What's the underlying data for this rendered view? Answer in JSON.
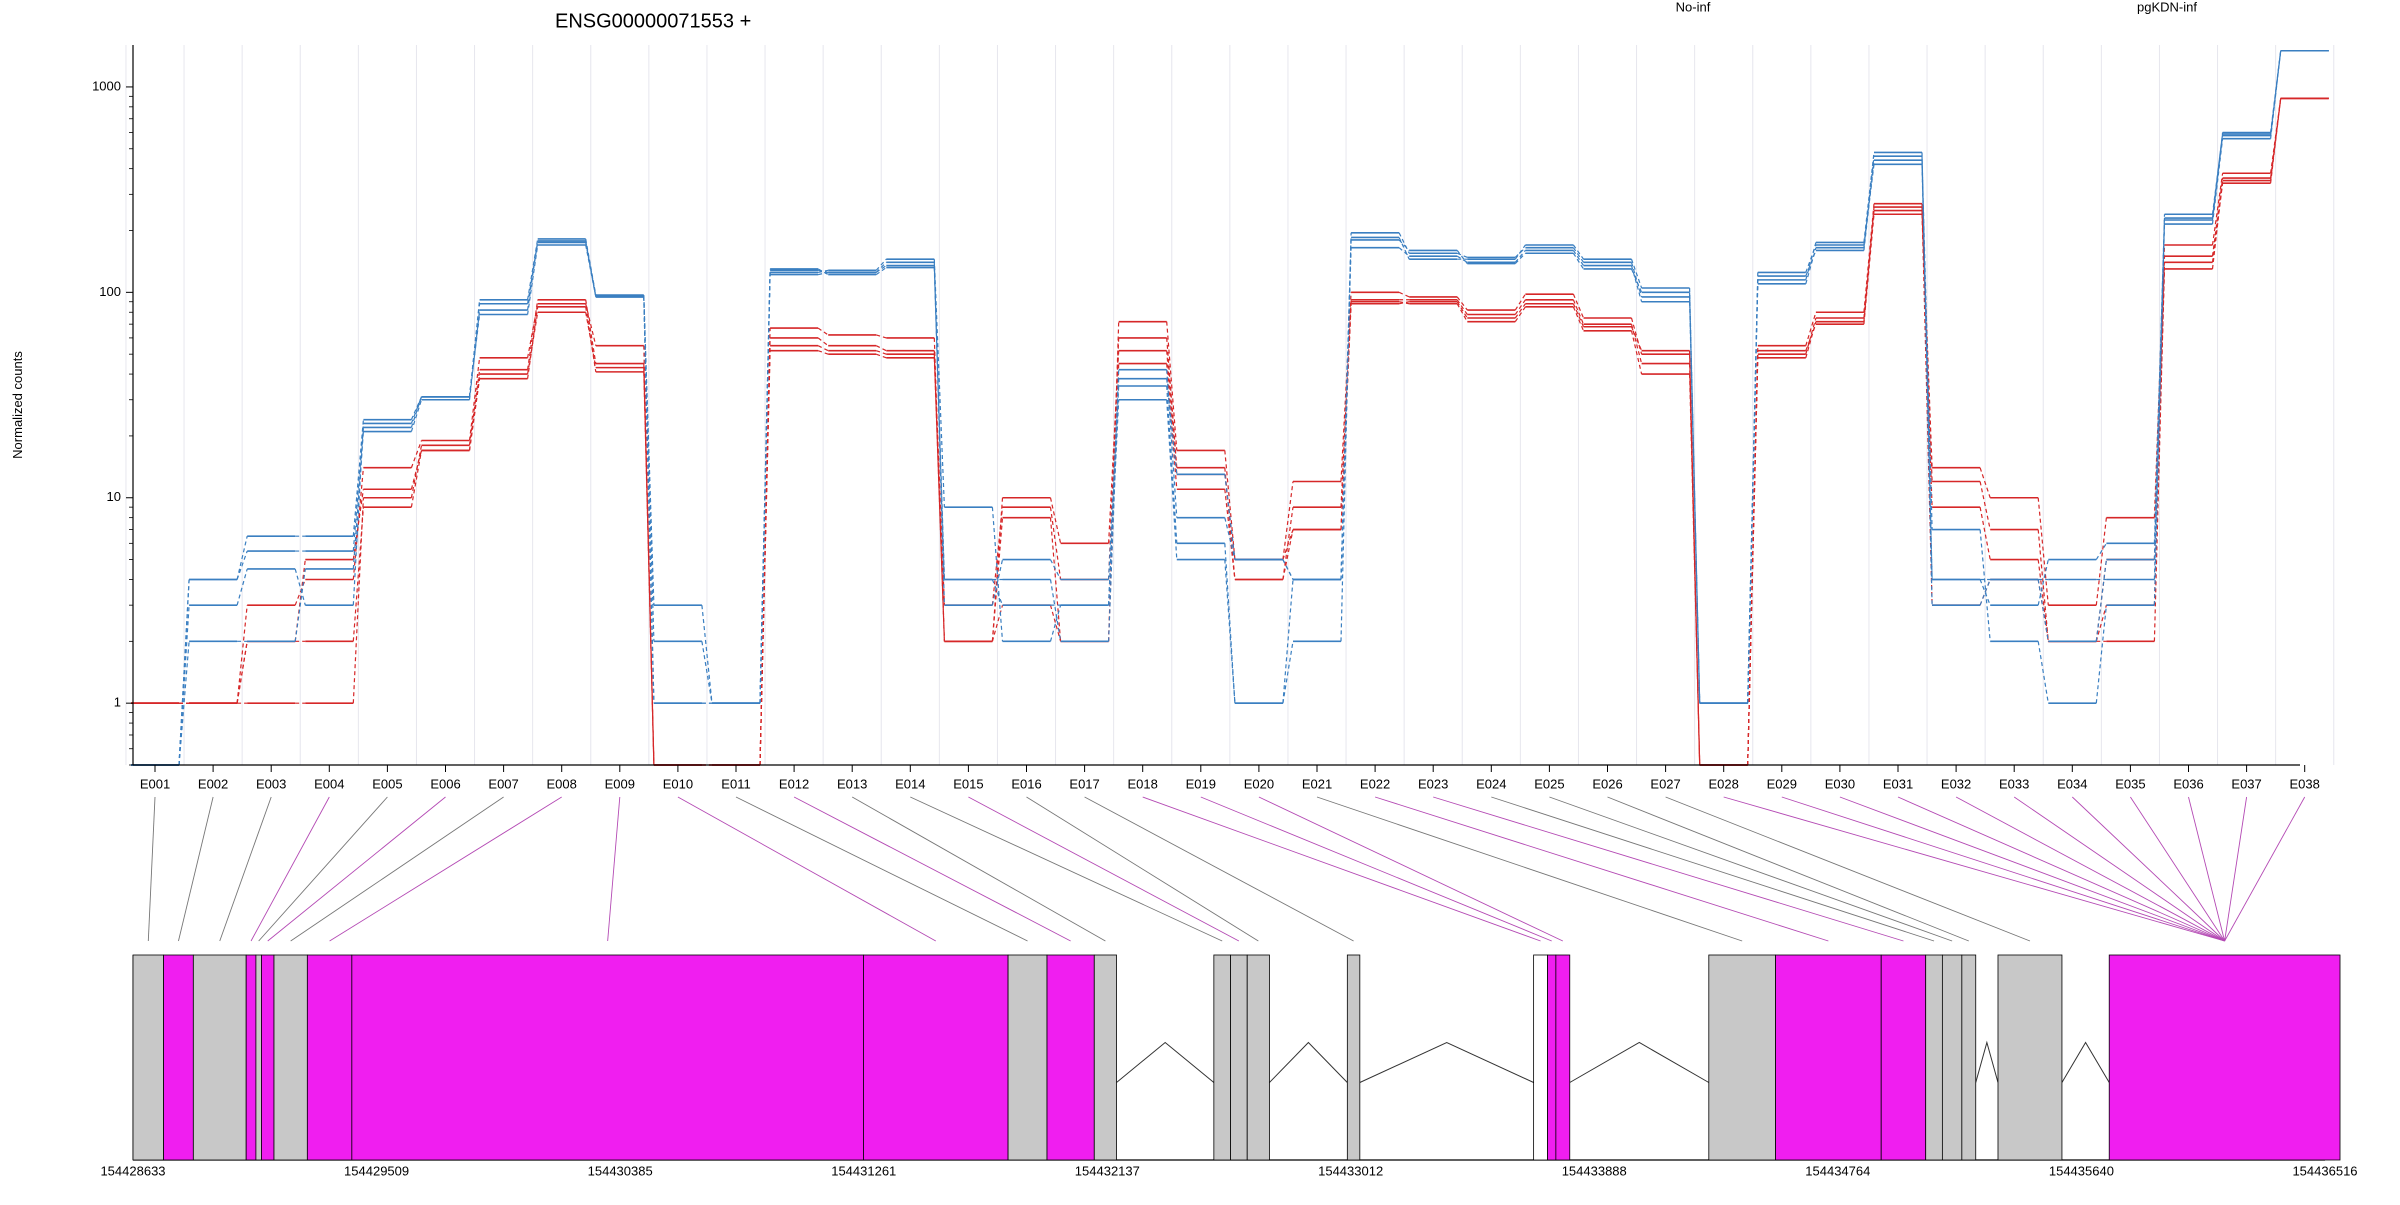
{
  "chart_data": {
    "type": "line",
    "title": "ENSG00000071553 +",
    "xlabel": "",
    "ylabel": "Normalized counts",
    "y_scale": "log",
    "ylim": [
      0.5,
      1600
    ],
    "grid": {
      "x": true,
      "y": false
    },
    "legend": {
      "placement": "top-right"
    },
    "y_ticks": [
      {
        "value": 1,
        "label": "1"
      },
      {
        "value": 10,
        "label": "10"
      },
      {
        "value": 100,
        "label": "100"
      },
      {
        "value": 1000,
        "label": "1000"
      }
    ],
    "categories": [
      "E001",
      "E002",
      "E003",
      "E004",
      "E005",
      "E006",
      "E007",
      "E008",
      "E009",
      "E010",
      "E011",
      "E012",
      "E013",
      "E014",
      "E015",
      "E016",
      "E017",
      "E018",
      "E019",
      "E020",
      "E021",
      "E022",
      "E023",
      "E024",
      "E025",
      "E026",
      "E027",
      "E028",
      "E029",
      "E030",
      "E031",
      "E032",
      "E033",
      "E034",
      "E035",
      "E036",
      "E037",
      "E038"
    ],
    "series": [
      {
        "group": "No-inf",
        "color": "#d62728",
        "values": [
          1,
          1,
          2,
          2,
          9,
          17,
          38,
          85,
          41,
          0.5,
          0.5,
          52,
          50,
          48,
          2,
          3,
          2,
          72,
          17,
          5,
          12,
          100,
          95,
          82,
          98,
          75,
          50,
          0.5,
          55,
          80,
          270,
          14,
          10,
          3,
          8,
          170,
          380,
          880
        ]
      },
      {
        "group": "No-inf",
        "color": "#d62728",
        "values": [
          1,
          1,
          1,
          1,
          10,
          18,
          42,
          92,
          45,
          0.5,
          0.5,
          60,
          55,
          52,
          3,
          9,
          4,
          60,
          14,
          4,
          9,
          92,
          92,
          78,
          92,
          70,
          45,
          0.5,
          50,
          75,
          250,
          12,
          7,
          2,
          5,
          150,
          360,
          880
        ]
      },
      {
        "group": "No-inf",
        "color": "#d62728",
        "values": [
          1,
          1,
          3,
          4,
          14,
          19,
          48,
          88,
          55,
          0.5,
          0.5,
          67,
          62,
          60,
          2,
          10,
          6,
          52,
          13,
          5,
          7,
          88,
          90,
          75,
          88,
          68,
          52,
          0.5,
          52,
          70,
          240,
          9,
          5,
          2,
          2,
          140,
          340,
          880
        ]
      },
      {
        "group": "No-inf",
        "color": "#d62728",
        "values": [
          1,
          1,
          2,
          5,
          11,
          17,
          40,
          80,
          43,
          0.5,
          0.5,
          55,
          52,
          50,
          2,
          8,
          2,
          45,
          11,
          4,
          7,
          90,
          88,
          72,
          85,
          65,
          40,
          0.5,
          48,
          72,
          260,
          3,
          4,
          2,
          3,
          130,
          350,
          880
        ]
      },
      {
        "group": "pgKDN-inf",
        "color": "#3a7fc1",
        "values": [
          0.5,
          4,
          6.5,
          6.5,
          24,
          31,
          92,
          182,
          97,
          3,
          1,
          125,
          128,
          145,
          9,
          2,
          3,
          30,
          5,
          1,
          2,
          195,
          155,
          148,
          165,
          140,
          95,
          1,
          110,
          165,
          460,
          7,
          2,
          1,
          3,
          225,
          580,
          1500
        ]
      },
      {
        "group": "pgKDN-inf",
        "color": "#3a7fc1",
        "values": [
          0.5,
          4,
          5.5,
          5.5,
          22,
          31,
          78,
          170,
          95,
          1,
          1,
          130,
          122,
          132,
          4,
          4,
          2,
          38,
          13,
          5,
          4,
          180,
          160,
          138,
          155,
          130,
          100,
          1,
          120,
          160,
          440,
          4,
          4,
          4,
          4,
          215,
          560,
          1500
        ]
      },
      {
        "group": "pgKDN-inf",
        "color": "#3a7fc1",
        "values": [
          0.5,
          2,
          2,
          4.5,
          21,
          30,
          82,
          178,
          96,
          2,
          1,
          122,
          125,
          135,
          4,
          3,
          3,
          42,
          8,
          5,
          4,
          165,
          150,
          140,
          160,
          135,
          90,
          1,
          125,
          170,
          420,
          4,
          3,
          5,
          6,
          230,
          600,
          1500
        ]
      },
      {
        "group": "pgKDN-inf",
        "color": "#3a7fc1",
        "values": [
          0.5,
          3,
          4.5,
          3,
          23,
          31,
          88,
          175,
          95,
          1,
          1,
          128,
          125,
          140,
          3,
          5,
          4,
          35,
          6,
          1,
          4,
          185,
          145,
          145,
          170,
          145,
          105,
          1,
          115,
          175,
          480,
          3,
          4,
          2,
          5,
          240,
          590,
          1500
        ]
      }
    ],
    "legend_entries": [
      {
        "label": "No-inf",
        "color": "#d62728"
      },
      {
        "label": "pgKDN-inf",
        "color": "#3a7fc1"
      }
    ],
    "gene_model": {
      "coordinate_labels": [
        "154428633",
        "154429509",
        "154430385",
        "154431261",
        "154432137",
        "154433012",
        "154433888",
        "154434764",
        "154435640",
        "154436516"
      ],
      "coordinate_values": [
        154428633,
        154429509,
        154430385,
        154431261,
        154432137,
        154433012,
        154433888,
        154434764,
        154435640,
        154436516
      ],
      "exon_colors": {
        "tested": "#c8c8c8",
        "highlighted": "#f01ef0",
        "untested": "#ffffff"
      },
      "exons": [
        {
          "start": 154428633,
          "end": 154428743,
          "color": "gray",
          "connector": "gray"
        },
        {
          "start": 154428743,
          "end": 154428850,
          "color": "magenta",
          "connector": "gray"
        },
        {
          "start": 154428850,
          "end": 154429040,
          "color": "gray",
          "connector": "gray"
        },
        {
          "start": 154429040,
          "end": 154429075,
          "color": "magenta",
          "connector": "magenta"
        },
        {
          "start": 154429075,
          "end": 154429095,
          "color": "gray",
          "connector": "gray"
        },
        {
          "start": 154429095,
          "end": 154429140,
          "color": "magenta",
          "connector": "magenta"
        },
        {
          "start": 154429140,
          "end": 154429260,
          "color": "gray",
          "connector": "gray"
        },
        {
          "start": 154429260,
          "end": 154429420,
          "color": "magenta",
          "connector": "magenta"
        },
        {
          "start": 154429420,
          "end": 154431260,
          "color": "magenta",
          "connector": "magenta"
        },
        {
          "start": 154431260,
          "end": 154431780,
          "color": "magenta",
          "connector": "magenta"
        },
        {
          "start": 154431780,
          "end": 154431920,
          "color": "gray",
          "connector": "gray"
        },
        {
          "start": 154431920,
          "end": 154432090,
          "color": "magenta",
          "connector": "magenta"
        },
        {
          "start": 154432090,
          "end": 154432170,
          "color": "gray",
          "connector": "gray"
        },
        {
          "start": 154432520,
          "end": 154432580,
          "color": "gray",
          "connector": "gray"
        },
        {
          "start": 154432580,
          "end": 154432640,
          "color": "gray",
          "connector": "magenta"
        },
        {
          "start": 154432640,
          "end": 154432720,
          "color": "gray",
          "connector": "gray"
        },
        {
          "start": 154433000,
          "end": 154433045,
          "color": "gray",
          "connector": "gray"
        },
        {
          "start": 154433670,
          "end": 154433720,
          "color": "untested",
          "connector": "magenta"
        },
        {
          "start": 154433720,
          "end": 154433750,
          "color": "magenta",
          "connector": "magenta"
        },
        {
          "start": 154433750,
          "end": 154433800,
          "color": "magenta",
          "connector": "magenta"
        },
        {
          "start": 154434300,
          "end": 154434540,
          "color": "gray",
          "connector": "gray"
        },
        {
          "start": 154434540,
          "end": 154434920,
          "color": "magenta",
          "connector": "magenta"
        },
        {
          "start": 154434920,
          "end": 154435080,
          "color": "magenta",
          "connector": "magenta"
        },
        {
          "start": 154435080,
          "end": 154435140,
          "color": "gray",
          "connector": "gray"
        },
        {
          "start": 154435140,
          "end": 154435210,
          "color": "gray",
          "connector": "gray"
        },
        {
          "start": 154435210,
          "end": 154435260,
          "color": "gray",
          "connector": "gray"
        },
        {
          "start": 154435340,
          "end": 154435570,
          "color": "gray",
          "connector": "gray"
        },
        {
          "start": 154435740,
          "end": 154436570,
          "color": "magenta",
          "connector": "magenta"
        }
      ]
    }
  }
}
